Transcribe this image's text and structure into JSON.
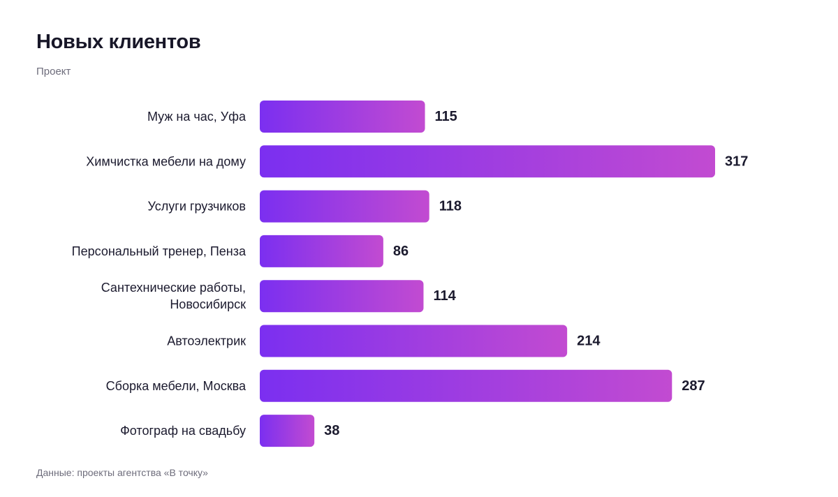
{
  "header": {
    "title": "Новых клиентов",
    "subtitle": "Проект"
  },
  "footer": {
    "source": "Данные: проекты агентства «В точку»"
  },
  "colors": {
    "bar_start": "#7b2ff0",
    "bar_end": "#c24bd1",
    "text": "#1b1a2e",
    "muted": "#6d6c7b"
  },
  "chart_data": {
    "type": "bar",
    "orientation": "horizontal",
    "title": "Новых клиентов",
    "subtitle": "Проект",
    "categories": [
      [
        "Муж на час, Уфа"
      ],
      [
        "Химчистка мебели на дому"
      ],
      [
        "Услуги грузчиков"
      ],
      [
        "Персональный тренер, Пенза"
      ],
      [
        "Сантехнические работы,",
        "Новосибирск"
      ],
      [
        "Автоэлектрик"
      ],
      [
        "Сборка мебели, Москва"
      ],
      [
        "Фотограф на свадьбу"
      ]
    ],
    "values": [
      115,
      317,
      118,
      86,
      114,
      214,
      287,
      38
    ],
    "xlim": [
      0,
      317
    ],
    "grid": false,
    "legend": "none",
    "data_labels": true
  }
}
